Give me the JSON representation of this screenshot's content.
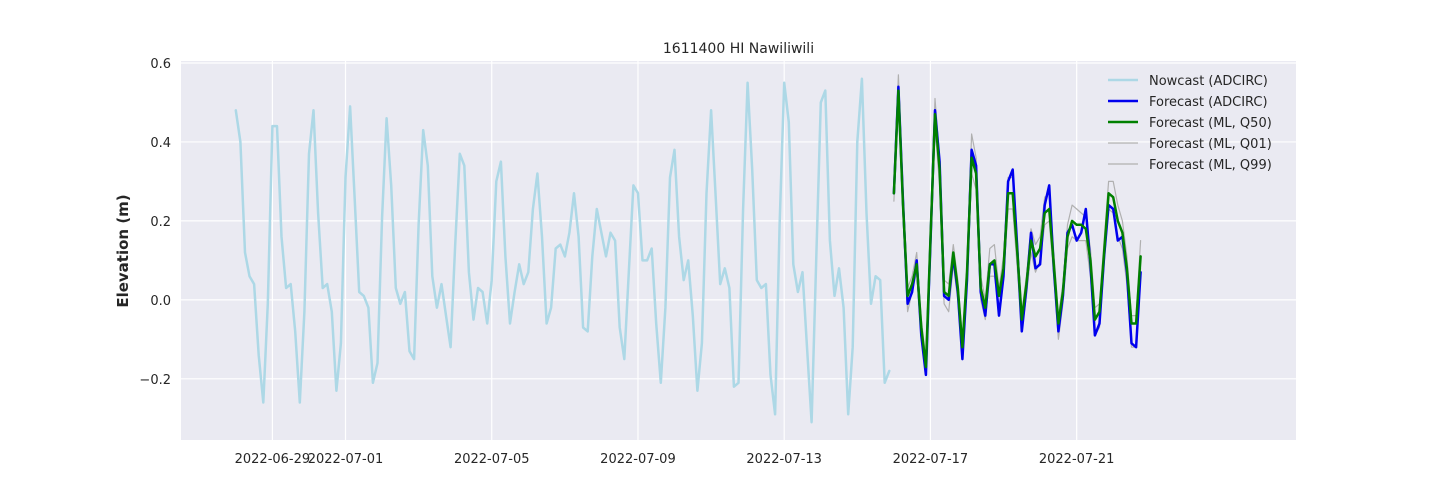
{
  "chart_data": {
    "type": "line",
    "title": "1611400 HI Nawiliwili",
    "xlabel": "",
    "ylabel": "Elevation (m)",
    "xlim": [
      "2022-06-26T12:00",
      "2022-07-27T00:00"
    ],
    "ylim": [
      -0.355,
      0.605
    ],
    "x_ticks": [
      "2022-06-29",
      "2022-07-01",
      "2022-07-05",
      "2022-07-09",
      "2022-07-13",
      "2022-07-17",
      "2022-07-21"
    ],
    "y_ticks": [
      -0.2,
      0.0,
      0.2,
      0.4,
      0.6
    ],
    "y_tick_labels": [
      "−0.2",
      "0.0",
      "0.2",
      "0.4",
      "0.6"
    ],
    "grid": true,
    "legend_position": "top-right",
    "series": [
      {
        "name": "Nowcast (ADCIRC)",
        "color": "#add8e6",
        "start": "2022-06-28T00:00",
        "step_hours": 3,
        "values": [
          0.48,
          0.4,
          0.12,
          0.06,
          0.04,
          -0.14,
          -0.26,
          -0.01,
          0.44,
          0.44,
          0.16,
          0.03,
          0.04,
          -0.08,
          -0.26,
          -0.03,
          0.37,
          0.48,
          0.22,
          0.03,
          0.04,
          -0.03,
          -0.23,
          -0.11,
          0.31,
          0.49,
          0.26,
          0.02,
          0.01,
          -0.02,
          -0.21,
          -0.16,
          0.21,
          0.46,
          0.29,
          0.03,
          -0.01,
          0.02,
          -0.13,
          -0.15,
          0.19,
          0.43,
          0.34,
          0.06,
          -0.02,
          0.04,
          -0.04,
          -0.12,
          0.14,
          0.37,
          0.34,
          0.07,
          -0.05,
          0.03,
          0.02,
          -0.06,
          0.05,
          0.3,
          0.35,
          0.11,
          -0.06,
          0.02,
          0.09,
          0.04,
          0.07,
          0.23,
          0.32,
          0.16,
          -0.06,
          -0.02,
          0.13,
          0.14,
          0.11,
          0.17,
          0.27,
          0.16,
          -0.07,
          -0.08,
          0.11,
          0.23,
          0.17,
          0.11,
          0.17,
          0.15,
          -0.07,
          -0.15,
          0.07,
          0.29,
          0.27,
          0.1,
          0.1,
          0.13,
          -0.06,
          -0.21,
          -0.02,
          0.31,
          0.38,
          0.16,
          0.05,
          0.1,
          -0.04,
          -0.23,
          -0.11,
          0.27,
          0.48,
          0.26,
          0.04,
          0.08,
          0.03,
          -0.22,
          -0.21,
          0.23,
          0.55,
          0.33,
          0.05,
          0.03,
          0.04,
          -0.19,
          -0.29,
          0.19,
          0.55,
          0.45,
          0.09,
          0.02,
          0.07,
          -0.12,
          -0.31,
          0.1,
          0.5,
          0.53,
          0.15,
          0.01,
          0.08,
          -0.02,
          -0.29,
          -0.12,
          0.4,
          0.56,
          0.22,
          -0.01,
          0.06,
          0.05,
          -0.21,
          -0.18
        ]
      },
      {
        "name": "Forecast (ADCIRC)",
        "color": "#0000ee",
        "start": "2022-07-16T00:00",
        "step_hours": 3,
        "values": [
          0.27,
          0.54,
          0.25,
          -0.01,
          0.02,
          0.1,
          -0.09,
          -0.19,
          0.14,
          0.48,
          0.35,
          0.01,
          0.0,
          0.11,
          0.02,
          -0.15,
          0.05,
          0.38,
          0.34,
          0.02,
          -0.04,
          0.09,
          0.09,
          -0.04,
          0.06,
          0.3,
          0.33,
          0.13,
          -0.08,
          0.03,
          0.17,
          0.08,
          0.09,
          0.24,
          0.29,
          0.08,
          -0.08,
          0.01,
          0.17,
          0.19,
          0.15,
          0.17,
          0.23,
          0.09,
          -0.09,
          -0.06,
          0.11,
          0.24,
          0.23,
          0.15,
          0.16,
          0.07,
          -0.11,
          -0.12,
          0.07
        ]
      },
      {
        "name": "Forecast (ML, Q50)",
        "color": "#008000",
        "start": "2022-07-16T00:00",
        "step_hours": 3,
        "values": [
          0.27,
          0.53,
          0.24,
          0.01,
          0.04,
          0.09,
          -0.07,
          -0.17,
          0.15,
          0.47,
          0.33,
          0.02,
          0.01,
          0.12,
          0.03,
          -0.12,
          0.07,
          0.36,
          0.32,
          0.03,
          -0.02,
          0.09,
          0.1,
          0.01,
          0.08,
          0.27,
          0.27,
          0.12,
          -0.05,
          0.04,
          0.15,
          0.11,
          0.13,
          0.22,
          0.23,
          0.09,
          -0.06,
          0.02,
          0.16,
          0.2,
          0.19,
          0.19,
          0.18,
          0.1,
          -0.05,
          -0.03,
          0.12,
          0.27,
          0.26,
          0.2,
          0.17,
          0.08,
          -0.06,
          -0.06,
          0.11
        ]
      },
      {
        "name": "Forecast (ML, Q01)",
        "color": "#b0b0b0",
        "start": "2022-07-16T00:00",
        "step_hours": 3,
        "values": [
          0.25,
          0.51,
          0.21,
          -0.03,
          0.02,
          0.07,
          -0.1,
          -0.19,
          0.12,
          0.44,
          0.29,
          -0.01,
          -0.03,
          0.09,
          0.0,
          -0.15,
          0.04,
          0.32,
          0.28,
          0.0,
          -0.05,
          0.06,
          0.06,
          -0.02,
          0.05,
          0.23,
          0.23,
          0.08,
          -0.08,
          0.01,
          0.12,
          0.07,
          0.1,
          0.19,
          0.2,
          0.06,
          -0.1,
          -0.01,
          0.13,
          0.16,
          0.15,
          0.15,
          0.15,
          0.06,
          -0.09,
          -0.07,
          0.09,
          0.23,
          0.22,
          0.16,
          0.13,
          0.04,
          -0.12,
          -0.12,
          0.08
        ]
      },
      {
        "name": "Forecast (ML, Q99)",
        "color": "#b0b0b0",
        "start": "2022-07-16T00:00",
        "step_hours": 3,
        "values": [
          0.29,
          0.57,
          0.27,
          0.03,
          0.06,
          0.12,
          -0.05,
          -0.15,
          0.18,
          0.51,
          0.36,
          0.05,
          0.04,
          0.14,
          0.05,
          -0.1,
          0.09,
          0.42,
          0.36,
          0.06,
          0.0,
          0.13,
          0.14,
          0.03,
          0.11,
          0.31,
          0.31,
          0.15,
          -0.03,
          0.06,
          0.18,
          0.14,
          0.16,
          0.26,
          0.27,
          0.12,
          -0.04,
          0.04,
          0.19,
          0.24,
          0.23,
          0.22,
          0.21,
          0.13,
          -0.02,
          -0.01,
          0.15,
          0.3,
          0.3,
          0.24,
          0.2,
          0.11,
          -0.04,
          -0.04,
          0.15
        ]
      }
    ]
  }
}
